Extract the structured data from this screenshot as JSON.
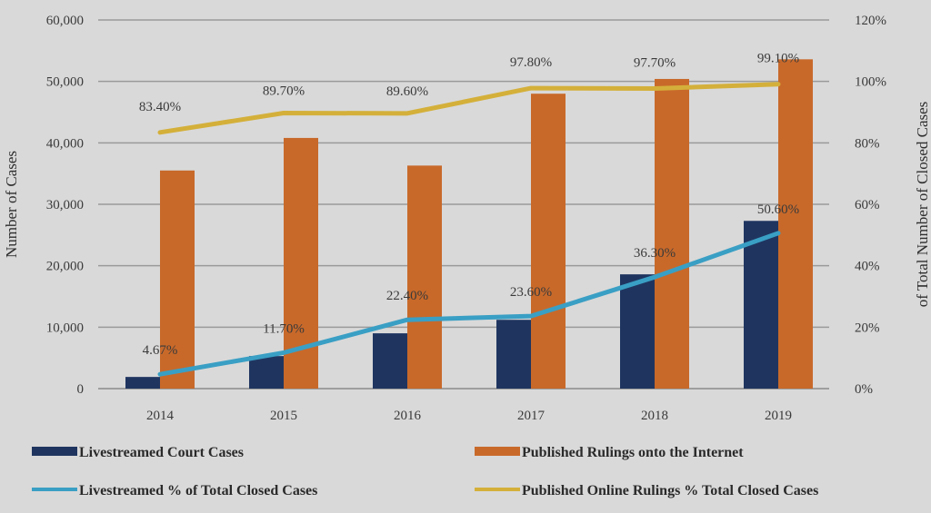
{
  "chart_data": {
    "type": "bar",
    "title": "",
    "categories": [
      "2014",
      "2015",
      "2016",
      "2017",
      "2018",
      "2019"
    ],
    "ylabel": "Number of Cases",
    "y2label": "of Total Number of Closed Cases",
    "ylim": [
      0,
      60000
    ],
    "y2lim": [
      0,
      120
    ],
    "yticks": [
      "0",
      "10,000",
      "20,000",
      "30,000",
      "40,000",
      "50,000",
      "60,000"
    ],
    "y2ticks": [
      "0%",
      "20%",
      "40%",
      "60%",
      "80%",
      "100%",
      "120%"
    ],
    "grid": true,
    "legend_position": "bottom",
    "series": [
      {
        "name": "Livestreamed Court Cases",
        "type": "bar",
        "axis": "left",
        "color": "#1f3560",
        "values": [
          1900,
          5300,
          9000,
          11200,
          18600,
          27300
        ]
      },
      {
        "name": "Published Rulings onto the Internet",
        "type": "bar",
        "axis": "left",
        "color": "#c8692a",
        "values": [
          35500,
          40800,
          36300,
          48000,
          50400,
          53600
        ]
      },
      {
        "name": "Livestreamed % of Total Closed Cases",
        "type": "line",
        "axis": "right",
        "color": "#3a9fc4",
        "values": [
          4.67,
          11.7,
          22.4,
          23.6,
          36.3,
          50.6
        ],
        "labels": [
          "4.67%",
          "11.70%",
          "22.40%",
          "23.60%",
          "36.30%",
          "50.60%"
        ]
      },
      {
        "name": "Published Online Rulings % Total Closed Cases",
        "type": "line",
        "axis": "right",
        "color": "#d4b03a",
        "values": [
          83.4,
          89.7,
          89.6,
          97.8,
          97.7,
          99.1
        ],
        "labels": [
          "83.40%",
          "89.70%",
          "89.60%",
          "97.80%",
          "97.70%",
          "99.10%"
        ]
      }
    ]
  }
}
